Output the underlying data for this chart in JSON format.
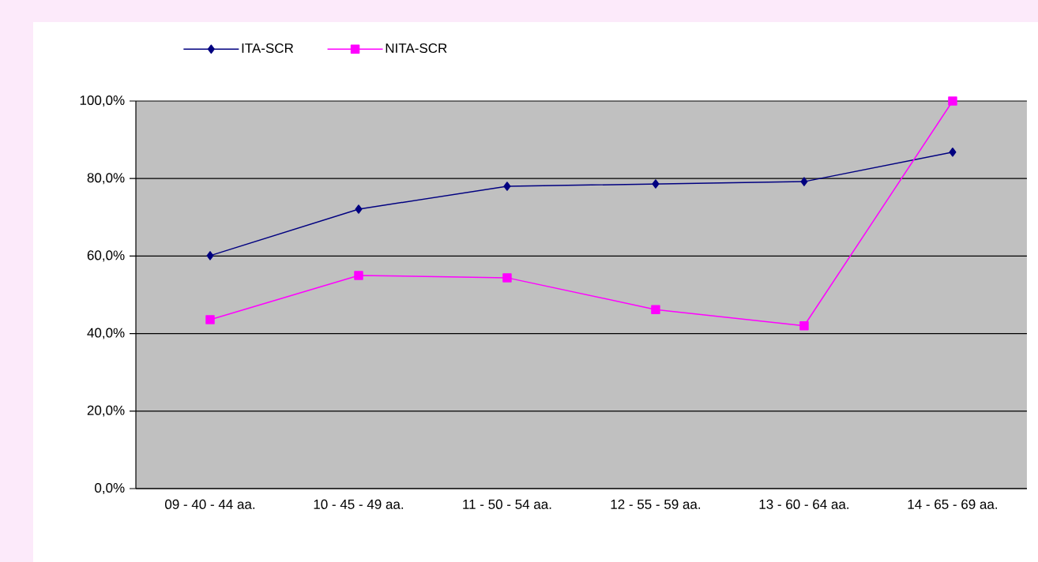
{
  "chart_data": {
    "type": "line",
    "categories": [
      "09 - 40 - 44 aa.",
      "10 - 45 - 49 aa.",
      "11 - 50 - 54 aa.",
      "12 - 55 - 59 aa.",
      "13 - 60 - 64 aa.",
      "14 - 65 - 69 aa."
    ],
    "series": [
      {
        "name": "ITA-SCR",
        "color": "#000080",
        "marker": "diamond",
        "values": [
          60.1,
          72.1,
          78.0,
          78.6,
          79.2,
          86.8
        ]
      },
      {
        "name": "NITA-SCR",
        "color": "#ff00ff",
        "marker": "square",
        "values": [
          43.6,
          55.0,
          54.4,
          46.2,
          42.0,
          100.0
        ]
      }
    ],
    "ylim": [
      0,
      100
    ],
    "yticks": [
      {
        "value": 0,
        "label": "0,0%"
      },
      {
        "value": 20,
        "label": "20,0%"
      },
      {
        "value": 40,
        "label": "40,0%"
      },
      {
        "value": 60,
        "label": "60,0%"
      },
      {
        "value": 80,
        "label": "80,0%"
      },
      {
        "value": 100,
        "label": "100,0%"
      }
    ],
    "grid": "y",
    "legend": "top left",
    "line_style": "solid"
  }
}
